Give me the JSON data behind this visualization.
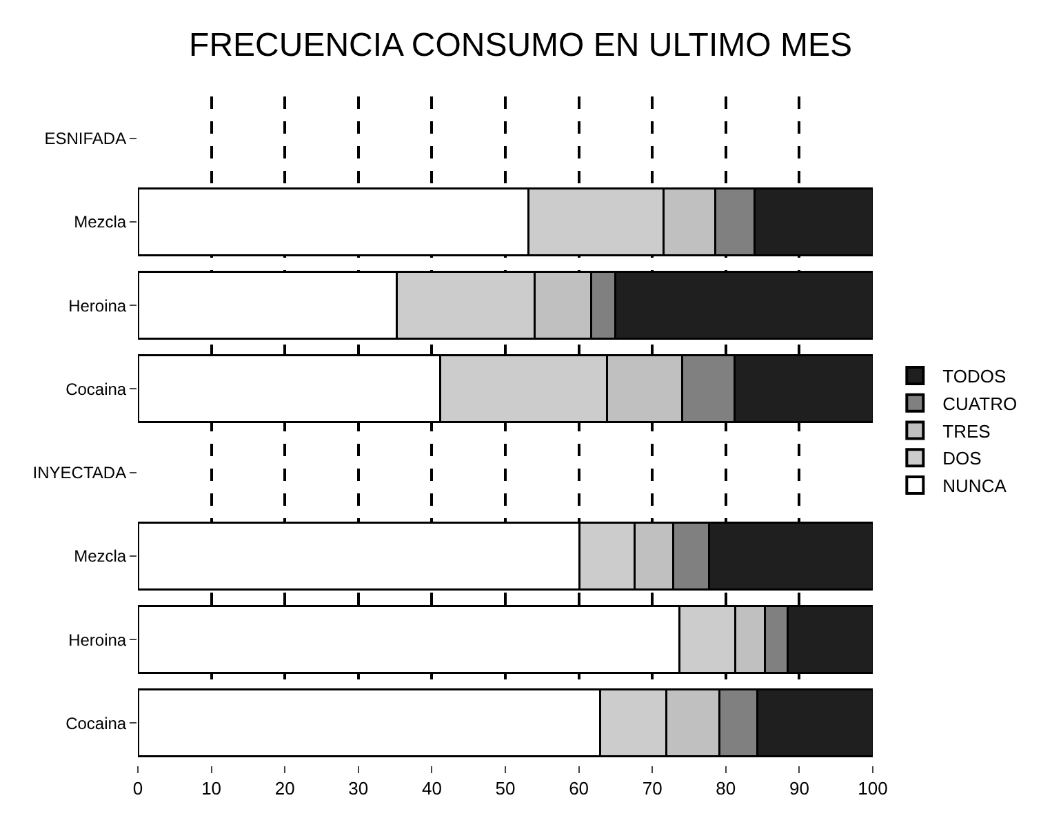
{
  "chart_data": {
    "type": "bar",
    "title": "FRECUENCIA CONSUMO EN ULTIMO MES",
    "orientation": "horizontal",
    "stacked": true,
    "categories": [
      "ESNIFADA",
      "Mezcla",
      "Heroina",
      "Cocaina",
      "INYECTADA",
      "Mezcla",
      "Heroina",
      "Cocaina"
    ],
    "series": [
      {
        "name": "NUNCA",
        "color": "#ffffff",
        "values": [
          null,
          53.1,
          35.2,
          41.1,
          null,
          60.1,
          73.7,
          62.9
        ]
      },
      {
        "name": "DOS",
        "color": "#cccccc",
        "values": [
          null,
          18.4,
          18.8,
          22.7,
          null,
          7.5,
          7.6,
          9.0
        ]
      },
      {
        "name": "TRES",
        "color": "#c0c0c0",
        "values": [
          null,
          7.1,
          7.7,
          10.3,
          null,
          5.2,
          4.0,
          7.2
        ]
      },
      {
        "name": "CUATRO",
        "color": "#808080",
        "values": [
          null,
          5.3,
          3.3,
          7.1,
          null,
          4.9,
          3.1,
          5.2
        ]
      },
      {
        "name": "TODOS",
        "color": "#1f1f1f",
        "values": [
          null,
          16.1,
          35.0,
          18.8,
          null,
          22.3,
          11.6,
          15.7
        ]
      }
    ],
    "xlim": [
      0,
      100
    ],
    "xticks": [
      0,
      10,
      20,
      30,
      40,
      50,
      60,
      70,
      80,
      90,
      100
    ],
    "grid": "x",
    "legend": "right"
  }
}
